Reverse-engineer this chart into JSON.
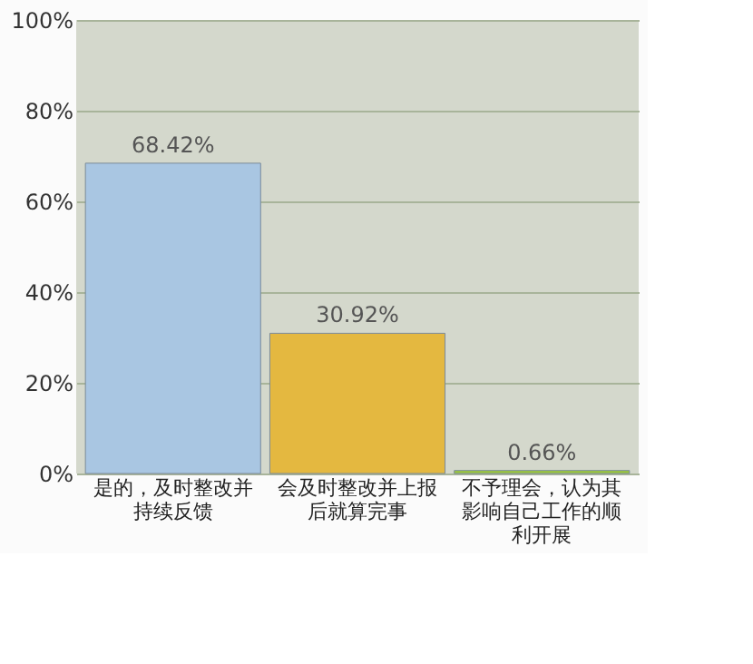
{
  "chart_data": {
    "type": "bar",
    "categories": [
      "是的，及时整改并持续反馈",
      "会及时整改并上报后就算完事",
      "不予理会，认为其影响自己工作的顺利开展"
    ],
    "values": [
      68.42,
      30.92,
      0.66
    ],
    "colors": [
      "#a9c6e2",
      "#e4b840",
      "#9cc83c"
    ],
    "value_labels": [
      "68.42%",
      "30.92%",
      "0.66%"
    ],
    "ylim": [
      0,
      100
    ],
    "yticks": [
      {
        "value": 0,
        "label": "0%"
      },
      {
        "value": 20,
        "label": "20%"
      },
      {
        "value": 40,
        "label": "40%"
      },
      {
        "value": 60,
        "label": "60%"
      },
      {
        "value": 80,
        "label": "80%"
      },
      {
        "value": 100,
        "label": "100%"
      }
    ],
    "grid": "y"
  }
}
